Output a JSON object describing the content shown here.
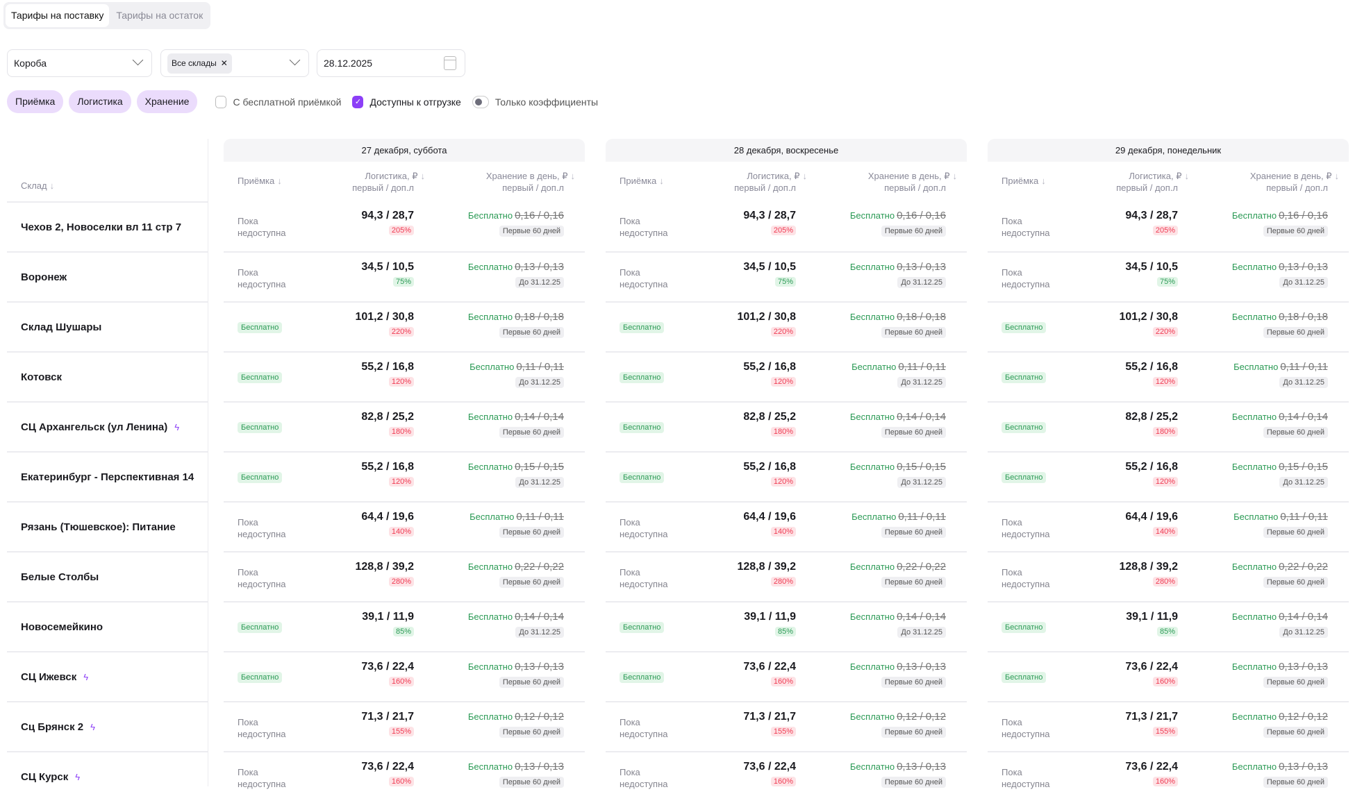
{
  "tabs": [
    {
      "label": "Тарифы на поставку",
      "active": true
    },
    {
      "label": "Тарифы на остаток",
      "active": false
    }
  ],
  "selects": {
    "box_type": "Короба",
    "warehouses_chip": "Все склады",
    "date": "28.12.2025"
  },
  "filters": {
    "pills": [
      "Приёмка",
      "Логистика",
      "Хранение"
    ],
    "free_acceptance": "С бесплатной приёмкой",
    "available": "Доступны к отгрузке",
    "only_coef": "Только коэффициенты"
  },
  "table": {
    "warehouse_header": "Склад",
    "col_acceptance": "Приёмка",
    "col_logistics": "Логистика, ₽",
    "col_logistics_sub": "первый / доп.л",
    "col_storage": "Хранение в день, ₽",
    "col_storage_sub": "первый / доп.л",
    "unavailable": "Пока недоступна",
    "free": "Бесплатно",
    "days": [
      "27 декабря, суббота",
      "28 декабря, воскресенье",
      "29 декабря, понедельник"
    ],
    "rows": [
      {
        "name": "Чехов 2, Новоселки вл 11 стр 7",
        "bolt": false,
        "acc_free": false,
        "log": "94,3 / 28,7",
        "pct": "205%",
        "pct_color": "red",
        "storage": "0,16 / 0,16",
        "note": "Первые 60 дней"
      },
      {
        "name": "Воронеж",
        "bolt": false,
        "acc_free": false,
        "log": "34,5 / 10,5",
        "pct": "75%",
        "pct_color": "green",
        "storage": "0,13 / 0,13",
        "note": "До 31.12.25"
      },
      {
        "name": "Склад Шушары",
        "bolt": false,
        "acc_free": true,
        "log": "101,2 / 30,8",
        "pct": "220%",
        "pct_color": "red",
        "storage": "0,18 / 0,18",
        "note": "Первые 60 дней"
      },
      {
        "name": "Котовск",
        "bolt": false,
        "acc_free": true,
        "log": "55,2 / 16,8",
        "pct": "120%",
        "pct_color": "red",
        "storage": "0,11 / 0,11",
        "note": "До 31.12.25"
      },
      {
        "name": "СЦ Архангельск (ул Ленина)",
        "bolt": true,
        "acc_free": true,
        "log": "82,8 / 25,2",
        "pct": "180%",
        "pct_color": "red",
        "storage": "0,14 / 0,14",
        "note": "Первые 60 дней"
      },
      {
        "name": "Екатеринбург - Перспективная 14",
        "bolt": false,
        "acc_free": true,
        "log": "55,2 / 16,8",
        "pct": "120%",
        "pct_color": "red",
        "storage": "0,15 / 0,15",
        "note": "До 31.12.25"
      },
      {
        "name": "Рязань (Тюшевское): Питание",
        "bolt": false,
        "acc_free": false,
        "log": "64,4 / 19,6",
        "pct": "140%",
        "pct_color": "red",
        "storage": "0,11 / 0,11",
        "note": "Первые 60 дней"
      },
      {
        "name": "Белые Столбы",
        "bolt": false,
        "acc_free": false,
        "log": "128,8 / 39,2",
        "pct": "280%",
        "pct_color": "red",
        "storage": "0,22 / 0,22",
        "note": "Первые 60 дней"
      },
      {
        "name": "Новосемейкино",
        "bolt": false,
        "acc_free": true,
        "log": "39,1 / 11,9",
        "pct": "85%",
        "pct_color": "green",
        "storage": "0,14 / 0,14",
        "note": "До 31.12.25"
      },
      {
        "name": "СЦ Ижевск",
        "bolt": true,
        "acc_free": true,
        "log": "73,6 / 22,4",
        "pct": "160%",
        "pct_color": "red",
        "storage": "0,13 / 0,13",
        "note": "Первые 60 дней"
      },
      {
        "name": "Сц Брянск 2",
        "bolt": true,
        "acc_free": false,
        "log": "71,3 / 21,7",
        "pct": "155%",
        "pct_color": "red",
        "storage": "0,12 / 0,12",
        "note": "Первые 60 дней"
      },
      {
        "name": "СЦ Курск",
        "bolt": true,
        "acc_free": false,
        "log": "73,6 / 22,4",
        "pct": "160%",
        "pct_color": "red",
        "storage": "0,13 / 0,13",
        "note": "Первые 60 дней"
      }
    ]
  }
}
